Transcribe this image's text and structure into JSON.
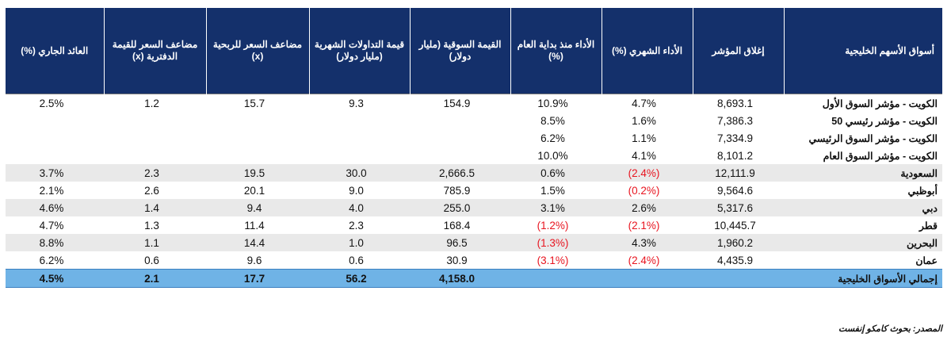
{
  "headers": {
    "market": "أسواق الأسهم الخليجية",
    "index_close": "إغلاق المؤشر",
    "monthly_perf": "الأداء الشهري (%)",
    "ytd_perf": "الأداء منذ بداية العام (%)",
    "market_cap": "القيمة السوقية (مليار دولار)",
    "monthly_turnover": "قيمة التداولات الشهرية (مليار دولار)",
    "pe": "مضاعف السعر للربحية (x)",
    "pb": "مضاعف السعر للقيمة الدفترية (x)",
    "yield": "العائد الجاري (%)"
  },
  "rows": [
    {
      "market": "الكويت - مؤشر السوق الأول",
      "index_close": "8,693.1",
      "monthly_perf": "4.7%",
      "ytd_perf": "10.9%",
      "market_cap": "154.9",
      "monthly_turnover": "9.3",
      "pe": "15.7",
      "pb": "1.2",
      "yield": "2.5%"
    },
    {
      "market": "الكويت - مؤشر رئيسي 50",
      "index_close": "7,386.3",
      "monthly_perf": "1.6%",
      "ytd_perf": "8.5%",
      "market_cap": "",
      "monthly_turnover": "",
      "pe": "",
      "pb": "",
      "yield": ""
    },
    {
      "market": "الكويت - مؤشر السوق الرئيسي",
      "index_close": "7,334.9",
      "monthly_perf": "1.1%",
      "ytd_perf": "6.2%",
      "market_cap": "",
      "monthly_turnover": "",
      "pe": "",
      "pb": "",
      "yield": ""
    },
    {
      "market": "الكويت - مؤشر السوق العام",
      "index_close": "8,101.2",
      "monthly_perf": "4.1%",
      "ytd_perf": "10.0%",
      "market_cap": "",
      "monthly_turnover": "",
      "pe": "",
      "pb": "",
      "yield": ""
    },
    {
      "market": "السعودية",
      "index_close": "12,111.9",
      "monthly_perf": "(2.4%)",
      "ytd_perf": "0.6%",
      "market_cap": "2,666.5",
      "monthly_turnover": "30.0",
      "pe": "19.5",
      "pb": "2.3",
      "yield": "3.7%"
    },
    {
      "market": "أبوظبي",
      "index_close": "9,564.6",
      "monthly_perf": "(0.2%)",
      "ytd_perf": "1.5%",
      "market_cap": "785.9",
      "monthly_turnover": "9.0",
      "pe": "20.1",
      "pb": "2.6",
      "yield": "2.1%"
    },
    {
      "market": "دبي",
      "index_close": "5,317.6",
      "monthly_perf": "2.6%",
      "ytd_perf": "3.1%",
      "market_cap": "255.0",
      "monthly_turnover": "4.0",
      "pe": "9.4",
      "pb": "1.4",
      "yield": "4.6%"
    },
    {
      "market": "قطر",
      "index_close": "10,445.7",
      "monthly_perf": "(2.1%)",
      "ytd_perf": "(1.2%)",
      "market_cap": "168.4",
      "monthly_turnover": "2.3",
      "pe": "11.4",
      "pb": "1.3",
      "yield": "4.7%"
    },
    {
      "market": "البحرين",
      "index_close": "1,960.2",
      "monthly_perf": "4.3%",
      "ytd_perf": "(1.3%)",
      "market_cap": "96.5",
      "monthly_turnover": "1.0",
      "pe": "14.4",
      "pb": "1.1",
      "yield": "8.8%"
    },
    {
      "market": "عمان",
      "index_close": "4,435.9",
      "monthly_perf": "(2.4%)",
      "ytd_perf": "(3.1%)",
      "market_cap": "30.9",
      "monthly_turnover": "0.6",
      "pe": "9.6",
      "pb": "0.6",
      "yield": "6.2%"
    }
  ],
  "total": {
    "market": "إجمالي الأسواق الخليجية",
    "index_close": "",
    "monthly_perf": "",
    "ytd_perf": "",
    "market_cap": "4,158.0",
    "monthly_turnover": "56.2",
    "pe": "17.7",
    "pb": "2.1",
    "yield": "4.5%"
  },
  "source": "المصدر: بحوث كامكو إنفست",
  "colors": {
    "header_bg": "#14306b",
    "total_bg": "#6fb3e6",
    "shade_bg": "#e9e9e9",
    "negative": "#e8141f"
  }
}
